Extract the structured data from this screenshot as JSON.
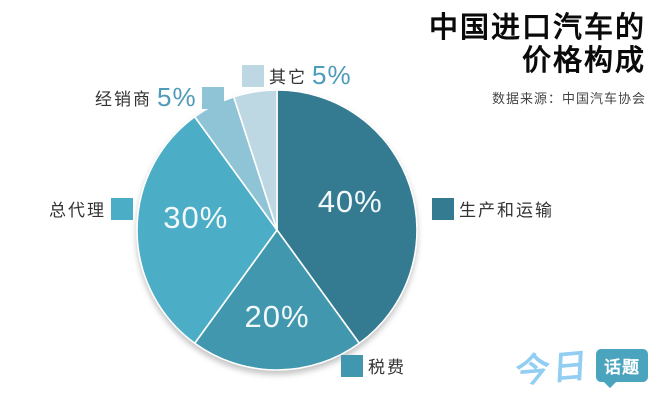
{
  "header": {
    "title_line1": "中国进口汽车的",
    "title_line2": "价格构成",
    "source": "数据来源：中国汽车协会"
  },
  "chart_data": {
    "type": "pie",
    "title": "中国进口汽车的价格构成",
    "unit": "%",
    "start_angle": "12 o'clock",
    "direction": "clockwise",
    "legend_position": "callouts around pie",
    "slices": [
      {
        "label": "生产和运输",
        "value": 40,
        "pct_label": "40%",
        "color": "#347b91"
      },
      {
        "label": "税费",
        "value": 20,
        "pct_label": "20%",
        "color": "#4197ae"
      },
      {
        "label": "总代理",
        "value": 30,
        "pct_label": "30%",
        "color": "#4badc6"
      },
      {
        "label": "经销商",
        "value": 5,
        "pct_label": "5%",
        "color": "#8fc3d6"
      },
      {
        "label": "其它",
        "value": 5,
        "pct_label": "5%",
        "color": "#bdd8e3"
      }
    ]
  },
  "logo": {
    "part1": "今日",
    "part2": "话题",
    "script_color": "#92cdf2",
    "bubble_color": "#4ba4be"
  }
}
